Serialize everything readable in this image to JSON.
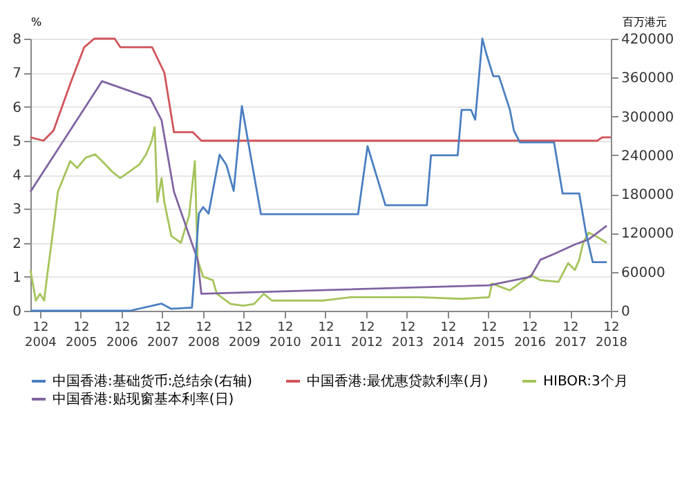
{
  "chart_data": {
    "type": "line",
    "ylabel": "%",
    "y2label": "百万港元",
    "legend": "bottom",
    "grid": "y",
    "xlim": [
      "2004-09-06",
      "2018-12-01"
    ],
    "xticks": [
      {
        "value": "2004-12-01",
        "label": "12\n2004"
      },
      {
        "value": "2005-12-01",
        "label": "12\n2005"
      },
      {
        "value": "2006-12-01",
        "label": "12\n2006"
      },
      {
        "value": "2007-12-01",
        "label": "12\n2007"
      },
      {
        "value": "2008-12-01",
        "label": "12\n2008"
      },
      {
        "value": "2009-12-01",
        "label": "12\n2009"
      },
      {
        "value": "2010-12-01",
        "label": "12\n2010"
      },
      {
        "value": "2011-12-01",
        "label": "12\n2011"
      },
      {
        "value": "2012-12-01",
        "label": "12\n2012"
      },
      {
        "value": "2013-12-01",
        "label": "12\n2013"
      },
      {
        "value": "2014-12-01",
        "label": "12\n2014"
      },
      {
        "value": "2015-12-01",
        "label": "12\n2015"
      },
      {
        "value": "2016-12-01",
        "label": "12\n2016"
      },
      {
        "value": "2017-12-01",
        "label": "12\n2017"
      },
      {
        "value": "2018-12-01",
        "label": "12\n2018"
      }
    ],
    "ylim": [
      0,
      8
    ],
    "yticks": [
      0,
      1,
      2,
      3,
      4,
      5,
      6,
      7,
      8
    ],
    "y2lim": [
      0,
      420000
    ],
    "y2ticks": [
      0,
      60000,
      120000,
      180000,
      240000,
      300000,
      360000,
      420000
    ],
    "series": [
      {
        "name": "中国香港:基础货币:总结余(右轴)",
        "color": "#4a7fc1",
        "axis": "y2",
        "x": [
          "2004-09-06",
          "2007-02-13",
          "2007-11-25",
          "2008-02-20",
          "2008-08-23",
          "2008-10-24",
          "2008-12-01",
          "2009-01-19",
          "2009-04-28",
          "2009-06-28",
          "2009-09-01",
          "2009-11-13",
          "2010-05-03",
          "2012-09-19",
          "2012-12-13",
          "2013-05-22",
          "2014-05-28",
          "2014-07-04",
          "2015-02-28",
          "2015-04-04",
          "2015-06-28",
          "2015-08-04",
          "2015-10-07",
          "2015-11-13",
          "2016-01-13",
          "2016-03-04",
          "2016-06-10",
          "2016-07-16",
          "2016-09-07",
          "2017-07-10",
          "2017-09-25",
          "2018-02-21",
          "2018-04-22",
          "2018-06-22",
          "2018-10-25"
        ],
        "values": [
          0,
          0,
          11000,
          3000,
          5000,
          150000,
          160000,
          150000,
          241000,
          225000,
          185000,
          316000,
          149000,
          149000,
          254000,
          163000,
          163000,
          240000,
          240000,
          310000,
          310000,
          295000,
          420000,
          396000,
          362000,
          362000,
          310000,
          278000,
          260000,
          260000,
          181000,
          181000,
          120000,
          75000,
          75000
        ]
      },
      {
        "name": "中国香港:最优惠贷款利率(月)",
        "color": "#d0545a",
        "x": [
          "2004-09-06",
          "2005-01-01",
          "2005-04-01",
          "2005-09-01",
          "2006-01-01",
          "2006-04-01",
          "2006-10-01",
          "2006-11-20",
          "2007-09-01",
          "2007-12-20",
          "2008-03-15",
          "2008-09-01",
          "2008-11-15",
          "2018-08-01",
          "2018-09-15",
          "2018-12-01"
        ],
        "values": [
          5.1,
          5.0,
          5.3,
          6.7,
          7.75,
          8.0,
          8.0,
          7.75,
          7.75,
          7.0,
          5.25,
          5.25,
          5.0,
          5.0,
          5.1,
          5.1
        ]
      },
      {
        "name": "HIBOR:3个月",
        "color": "#a5c45a",
        "x": [
          "2004-09-06",
          "2004-10-25",
          "2004-12-01",
          "2005-01-07",
          "2005-02-02",
          "2005-04-03",
          "2005-05-10",
          "2005-06-28",
          "2005-08-29",
          "2005-10-30",
          "2006-01-14",
          "2006-04-09",
          "2006-06-10",
          "2006-09-05",
          "2006-11-19",
          "2007-02-13",
          "2007-05-10",
          "2007-07-10",
          "2007-08-29",
          "2007-09-24",
          "2007-10-18",
          "2007-11-25",
          "2007-12-19",
          "2008-02-20",
          "2008-05-16",
          "2008-07-28",
          "2008-09-18",
          "2008-10-13",
          "2008-12-01",
          "2009-02-26",
          "2009-04-03",
          "2009-08-04",
          "2009-11-25",
          "2010-03-03",
          "2010-05-28",
          "2010-08-10",
          "2011-11-13",
          "2012-07-16",
          "2014-03-28",
          "2015-04-04",
          "2015-12-07",
          "2016-01-01",
          "2016-06-10",
          "2016-12-13",
          "2017-03-10",
          "2017-08-19",
          "2017-11-13",
          "2018-01-13",
          "2018-02-21",
          "2018-03-28",
          "2018-05-16",
          "2018-07-16",
          "2018-10-25"
        ],
        "values": [
          1.2,
          0.3,
          0.5,
          0.3,
          1.0,
          2.5,
          3.5,
          3.9,
          4.4,
          4.2,
          4.5,
          4.6,
          4.4,
          4.1,
          3.9,
          4.1,
          4.3,
          4.6,
          5.0,
          5.4,
          3.2,
          3.9,
          3.2,
          2.2,
          2.0,
          2.8,
          4.4,
          1.5,
          1.0,
          0.9,
          0.5,
          0.2,
          0.15,
          0.2,
          0.5,
          0.3,
          0.3,
          0.4,
          0.4,
          0.35,
          0.4,
          0.8,
          0.6,
          1.05,
          0.9,
          0.85,
          1.4,
          1.2,
          1.5,
          2.0,
          2.3,
          2.2,
          2.0
        ]
      },
      {
        "name": "中国香港:贴现窗基本利率(日)",
        "color": "#8064a2",
        "x": [
          "2004-09-06",
          "2006-06-10",
          "2007-08-15",
          "2007-11-25",
          "2008-03-15",
          "2008-10-13",
          "2008-11-15",
          "2015-12-07",
          "2016-12-13",
          "2017-03-10",
          "2017-07-10",
          "2018-01-13",
          "2018-05-16",
          "2018-10-25"
        ],
        "values": [
          3.5,
          6.75,
          6.25,
          5.6,
          3.5,
          1.5,
          0.5,
          0.75,
          1.0,
          1.5,
          1.67,
          1.95,
          2.1,
          2.5
        ]
      }
    ]
  }
}
